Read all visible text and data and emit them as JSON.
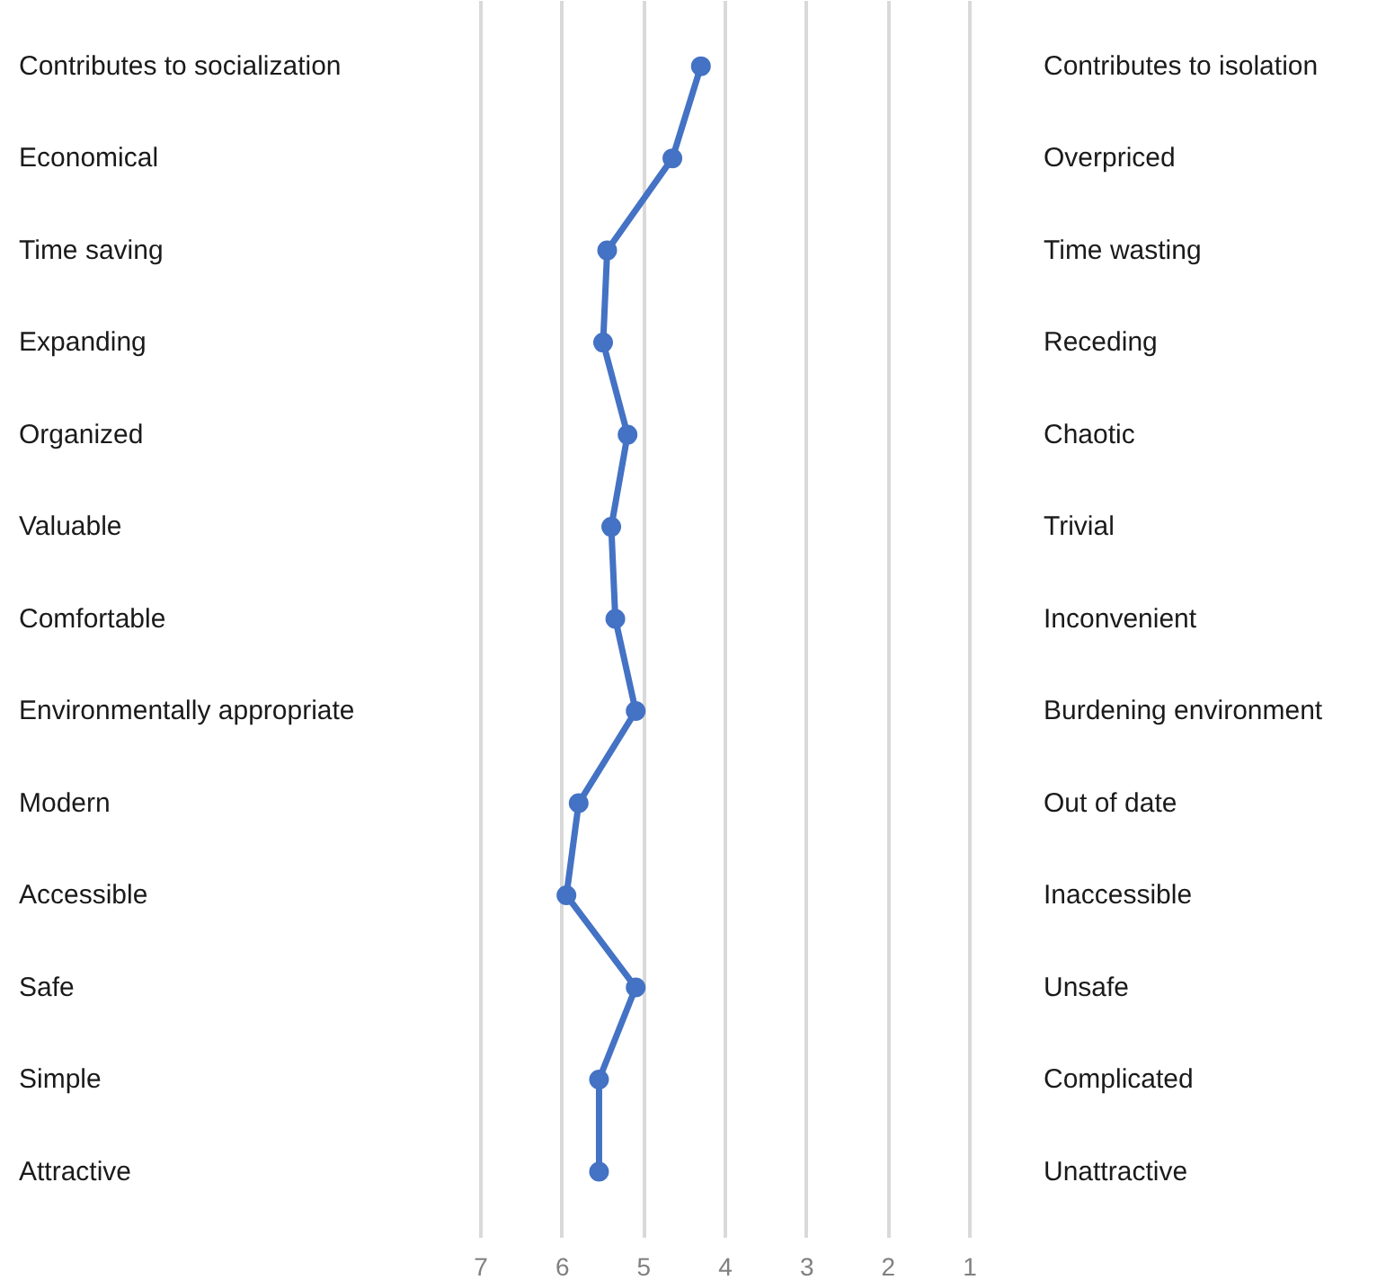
{
  "chart_data": {
    "type": "line",
    "orientation": "horizontal",
    "categories": [
      "Contributes to socialization",
      "Economical",
      "Time saving",
      "Expanding",
      "Organized",
      "Valuable",
      "Comfortable",
      "Environmentally appropriate",
      "Modern",
      "Accessible",
      "Safe",
      "Simple",
      "Attractive"
    ],
    "y2_categories": [
      "Contributes to isolation",
      "Overpriced",
      "Time wasting",
      "Receding",
      "Chaotic",
      "Trivial",
      "Inconvenient",
      "Burdening environment",
      "Out of date",
      "Inaccessible",
      "Unsafe",
      "Complicated",
      "Unattractive"
    ],
    "series": [
      {
        "color": "#4472c4",
        "values": [
          4.3,
          4.65,
          5.45,
          5.5,
          5.2,
          5.4,
          5.35,
          5.1,
          5.8,
          5.95,
          5.1,
          5.55,
          5.55
        ]
      }
    ],
    "xlim": [
      7,
      1
    ],
    "xticks": [
      7,
      6,
      5,
      4,
      3,
      2,
      1
    ],
    "grid": "x",
    "marker": "circle",
    "line_style": "solid"
  }
}
